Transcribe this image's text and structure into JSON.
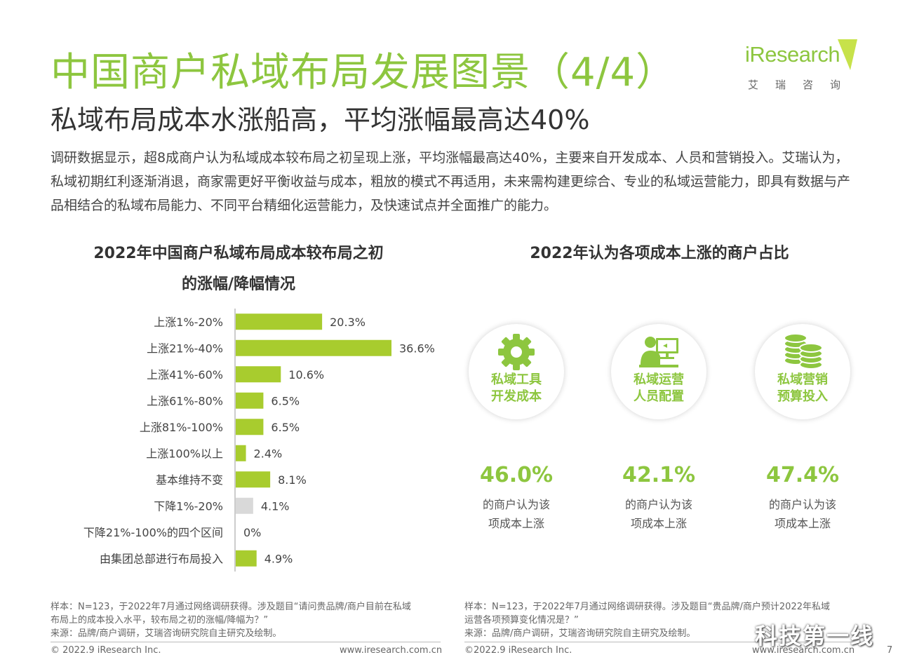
{
  "header": {
    "title": "中国商户私域布局发展图景（4/4）",
    "subtitle": "私域布局成本水涨船高，平均涨幅最高达40%",
    "logo_word": "iResearch",
    "logo_cn": "艾瑞咨询"
  },
  "intro": "调研数据显示，超8成商户认为私域成本较布局之初呈现上涨，平均涨幅最高达40%，主要来自开发成本、人员和营销投入。艾瑞认为，私域初期红利逐渐消退，商家需更好平衡收益与成本，粗放的模式不再适用，未来需构建更综合、专业的私域运营能力，即具有数据与产品相结合的私域布局能力、不同平台精细化运营能力，及快速试点并全面推广的能力。",
  "chart_data": [
    {
      "type": "bar",
      "orientation": "horizontal",
      "title": "2022年中国商户私域布局成本较布局之初的涨幅/降幅情况",
      "title_line1": "2022年中国商户私域布局成本较布局之初",
      "title_line2": "的涨幅/降幅情况",
      "unit": "%",
      "xlim": [
        0,
        36.6
      ],
      "categories": [
        "上涨1%-20%",
        "上涨21%-40%",
        "上涨41%-60%",
        "上涨61%-80%",
        "上涨81%-100%",
        "上涨100%以上",
        "基本维持不变",
        "下降1%-20%",
        "下降21%-100%的四个区间",
        "由集团总部进行布局投入"
      ],
      "values": [
        20.3,
        36.6,
        10.6,
        6.5,
        6.5,
        2.4,
        8.1,
        4.1,
        0,
        4.9
      ],
      "value_labels": [
        "20.3%",
        "36.6%",
        "10.6%",
        "6.5%",
        "6.5%",
        "2.4%",
        "8.1%",
        "4.1%",
        "0%",
        "4.9%"
      ],
      "bar_colors": [
        "#a8cc2e",
        "#a8cc2e",
        "#a8cc2e",
        "#a8cc2e",
        "#a8cc2e",
        "#a8cc2e",
        "#a8cc2e",
        "#d9d9d9",
        "#a8cc2e",
        "#a8cc2e"
      ]
    },
    {
      "type": "table",
      "title": "2022年认为各项成本上涨的商户占比",
      "items": [
        {
          "icon": "gear-icon",
          "label_line1": "私域工具",
          "label_line2": "开发成本",
          "value": 46.0,
          "value_label": "46.0%",
          "desc_line1": "的商户认为该",
          "desc_line2": "项成本上涨"
        },
        {
          "icon": "person-computer-icon",
          "label_line1": "私域运营",
          "label_line2": "人员配置",
          "value": 42.1,
          "value_label": "42.1%",
          "desc_line1": "的商户认为该",
          "desc_line2": "项成本上涨"
        },
        {
          "icon": "coin-stack-icon",
          "label_line1": "私域营销",
          "label_line2": "预算投入",
          "value": 47.4,
          "value_label": "47.4%",
          "desc_line1": "的商户认为该",
          "desc_line2": "项成本上涨"
        }
      ]
    }
  ],
  "notes": {
    "left": [
      "样本：N=123，于2022年7月通过网络调研获得。涉及题目“请问贵品牌/商户目前在私域",
      "布局上的成本投入水平，较布局之初的涨幅/降幅为？”",
      "来源：品牌/商户调研，艾瑞咨询研究院自主研究及绘制。"
    ],
    "right": [
      "样本：N=123，于2022年7月通过网络调研获得。涉及题目“贵品牌/商户预计2022年私域",
      "运营各项预算变化情况是？”",
      "来源：品牌/商户调研，艾瑞咨询研究院自主研究及绘制。"
    ]
  },
  "footer": {
    "left_copyright": "© 2022.9 iResearch Inc.",
    "left_url": "www.iresearch.com.cn",
    "right_copyright": "©2022.9 iResearch Inc.",
    "right_url": "www.iresearch.com.cn",
    "page_number": "7"
  },
  "watermark": "科技第一线",
  "colors": {
    "accent": "#8dc63f",
    "bar": "#a8cc2e",
    "bar_grey": "#d9d9d9"
  }
}
